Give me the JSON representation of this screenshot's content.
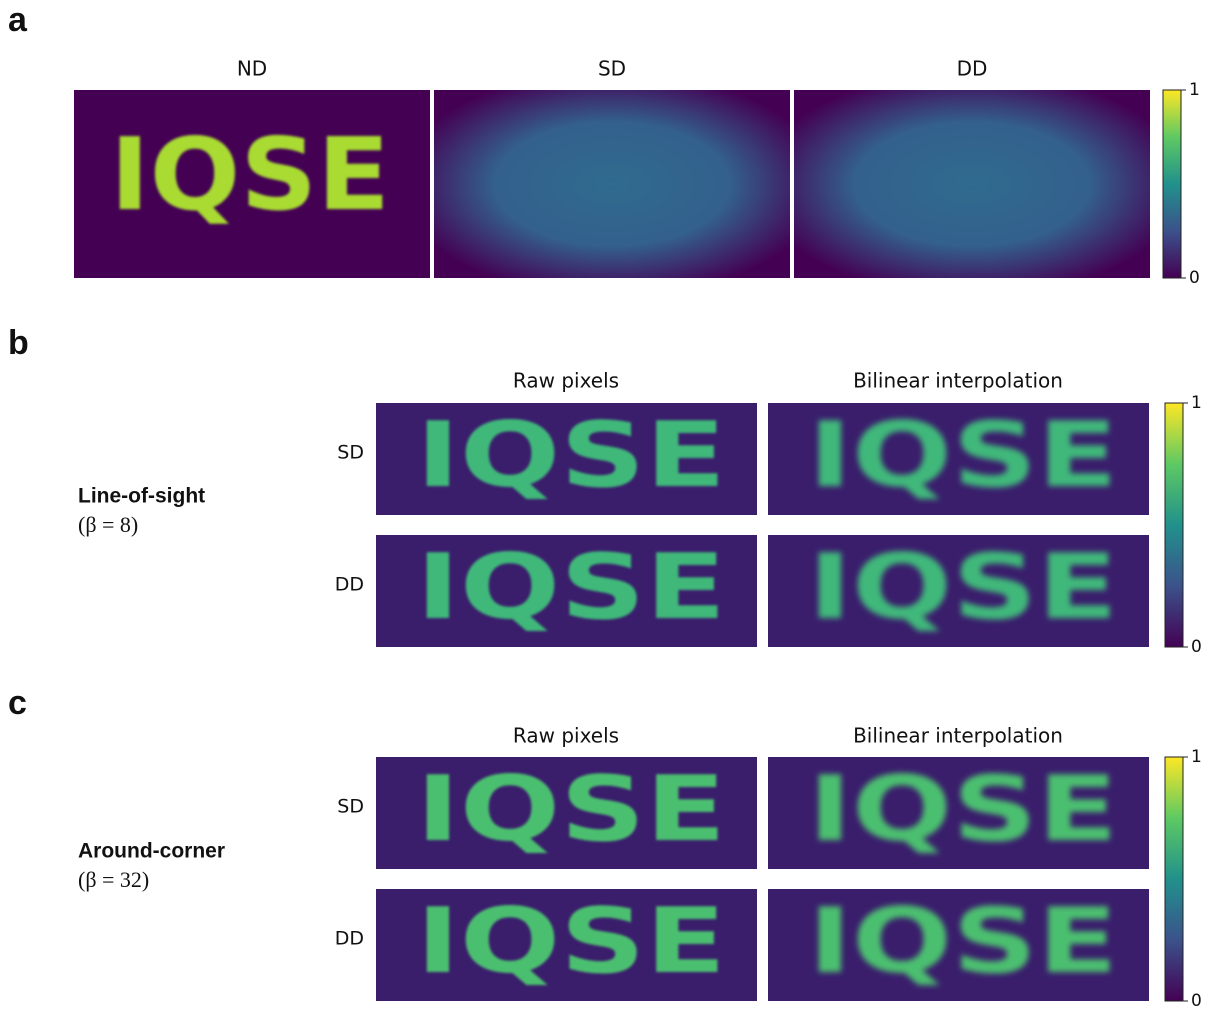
{
  "image_text": "IQSE",
  "panels": [
    {
      "letter": "a",
      "columns": [
        "ND",
        "SD",
        "DD"
      ],
      "colorbar_ticks": [
        1,
        0
      ]
    },
    {
      "letter": "b",
      "label": "Line-of-sight",
      "parameter": "(β = 8)",
      "columns": [
        "Raw pixels",
        "Bilinear interpolation"
      ],
      "rows": [
        "SD",
        "DD"
      ],
      "colorbar_ticks": [
        1,
        0
      ]
    },
    {
      "letter": "c",
      "label": "Around-corner",
      "parameter": "(β = 32)",
      "columns": [
        "Raw pixels",
        "Bilinear interpolation"
      ],
      "rows": [
        "SD",
        "DD"
      ],
      "colorbar_ticks": [
        1,
        0
      ]
    }
  ]
}
